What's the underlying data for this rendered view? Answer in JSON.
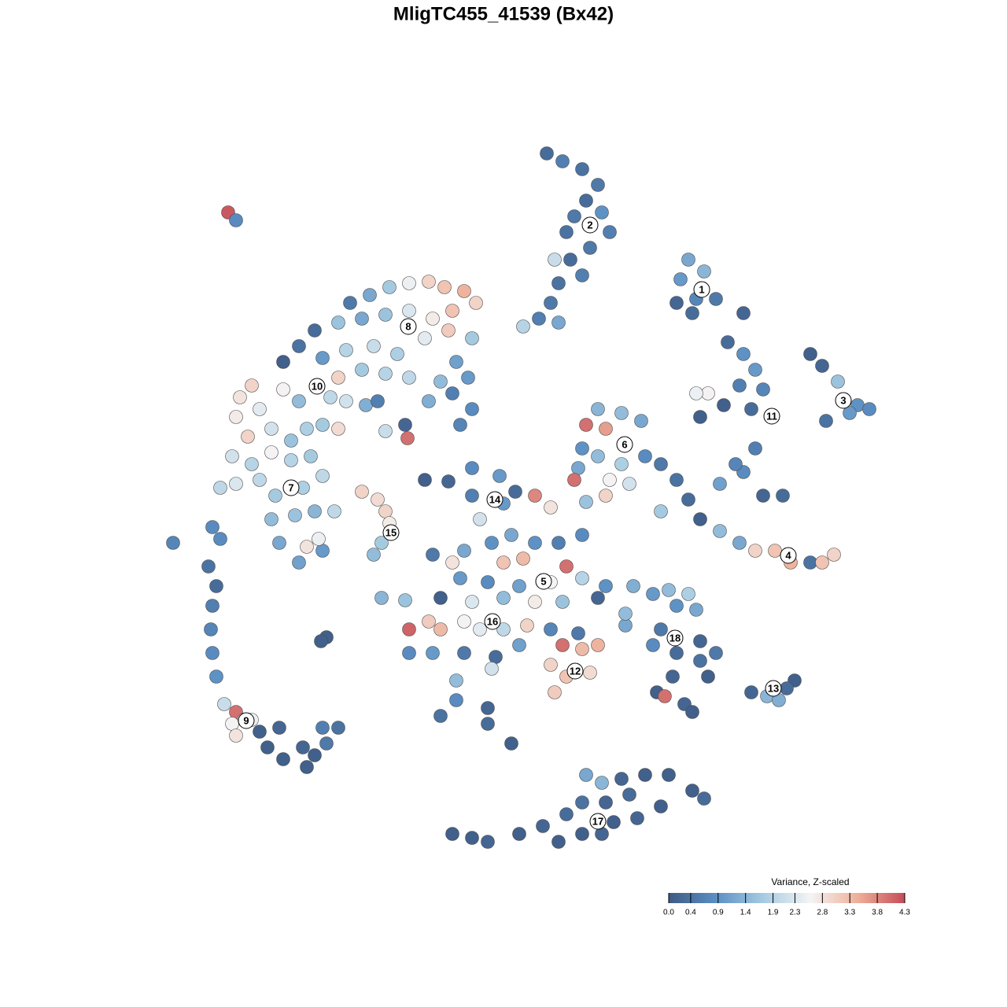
{
  "chart_data": {
    "type": "scatter",
    "title": "MligTC455_41539 (Bx42)",
    "xlim": [
      0,
      1280
    ],
    "ylim": [
      1280,
      0
    ],
    "x": [
      695,
      715,
      740,
      760,
      745,
      730,
      765,
      775,
      720,
      750,
      725,
      740,
      710,
      700,
      685,
      710,
      665,
      705,
      290,
      300,
      875,
      865,
      895,
      885,
      910,
      860,
      880,
      945,
      925,
      945,
      960,
      940,
      970,
      920,
      900,
      885,
      890,
      955,
      960,
      945,
      915,
      970,
      995,
      935,
      1030,
      1045,
      1065,
      1090,
      1105,
      1050,
      1080,
      445,
      470,
      495,
      520,
      545,
      565,
      590,
      605,
      575,
      550,
      520,
      490,
      460,
      430,
      400,
      380,
      360,
      410,
      440,
      475,
      505,
      540,
      570,
      600,
      580,
      560,
      595,
      600,
      575,
      585,
      545,
      520,
      490,
      460,
      430,
      420,
      440,
      465,
      480,
      320,
      305,
      330,
      360,
      380,
      300,
      315,
      345,
      370,
      390,
      410,
      430,
      295,
      320,
      345,
      370,
      395,
      280,
      300,
      330,
      350,
      385,
      410,
      345,
      375,
      400,
      425,
      355,
      390,
      410,
      380,
      405,
      490,
      515,
      518,
      460,
      480,
      490,
      495,
      485,
      475,
      760,
      790,
      815,
      745,
      770,
      740,
      760,
      790,
      820,
      840,
      735,
      730,
      775,
      800,
      770,
      745,
      860,
      875,
      890,
      915,
      940,
      960,
      985,
      1005,
      1030,
      1045,
      1060,
      840,
      540,
      570,
      600,
      635,
      655,
      680,
      700,
      610,
      640,
      600,
      550,
      590,
      625,
      650,
      680,
      710,
      740,
      575,
      640,
      665,
      720,
      700,
      660,
      620,
      585,
      740,
      770,
      560,
      600,
      640,
      680,
      715,
      760,
      545,
      520,
      560,
      590,
      610,
      640,
      670,
      700,
      735,
      520,
      550,
      590,
      630,
      660,
      715,
      740,
      760,
      700,
      720,
      750,
      705,
      580,
      580,
      560,
      620,
      620,
      650,
      625,
      485,
      515,
      795,
      795,
      805,
      830,
      850,
      875,
      860,
      885,
      840,
      830,
      860,
      890,
      910,
      900,
      855,
      835,
      845,
      870,
      880,
      890,
      955,
      975,
      990,
      1010,
      1000,
      220,
      270,
      280,
      265,
      275,
      270,
      268,
      270,
      275,
      285,
      300,
      310,
      295,
      320,
      300,
      330,
      355,
      340,
      360,
      385,
      400,
      415,
      430,
      390,
      410,
      415,
      408,
      575,
      600,
      620,
      660,
      690,
      710,
      720,
      740,
      745,
      765,
      790,
      820,
      850,
      880,
      895,
      840,
      810,
      780,
      765,
      740,
      800,
      770
    ],
    "y": [
      195,
      205,
      215,
      235,
      255,
      275,
      270,
      295,
      295,
      315,
      330,
      350,
      360,
      385,
      405,
      410,
      415,
      330,
      270,
      280,
      330,
      355,
      345,
      380,
      380,
      385,
      398,
      398,
      435,
      450,
      470,
      490,
      495,
      515,
      500,
      500,
      530,
      520,
      570,
      600,
      615,
      630,
      630,
      590,
      450,
      465,
      485,
      515,
      520,
      535,
      525,
      385,
      375,
      365,
      360,
      358,
      365,
      370,
      385,
      395,
      405,
      395,
      400,
      405,
      410,
      420,
      440,
      460,
      455,
      445,
      440,
      450,
      430,
      420,
      430,
      460,
      485,
      480,
      520,
      500,
      540,
      510,
      480,
      475,
      470,
      480,
      505,
      510,
      515,
      510,
      490,
      505,
      520,
      495,
      510,
      530,
      555,
      545,
      560,
      545,
      540,
      545,
      580,
      590,
      575,
      585,
      580,
      620,
      615,
      610,
      630,
      620,
      605,
      660,
      655,
      650,
      650,
      690,
      695,
      700,
      715,
      685,
      548,
      540,
      557,
      625,
      635,
      650,
      665,
      690,
      705,
      520,
      525,
      535,
      540,
      545,
      570,
      580,
      590,
      580,
      590,
      595,
      610,
      610,
      615,
      630,
      638,
      610,
      635,
      660,
      675,
      690,
      700,
      700,
      715,
      715,
      715,
      705,
      650,
      610,
      612,
      595,
      605,
      625,
      630,
      645,
      660,
      640,
      630,
      705,
      700,
      690,
      680,
      690,
      690,
      680,
      715,
      715,
      710,
      720,
      740,
      745,
      740,
      735,
      735,
      745,
      760,
      765,
      760,
      765,
      765,
      760,
      790,
      800,
      800,
      790,
      800,
      800,
      795,
      800,
      805,
      830,
      830,
      830,
      835,
      820,
      820,
      825,
      820,
      845,
      860,
      855,
      880,
      865,
      890,
      910,
      900,
      920,
      945,
      850,
      760,
      763,
      795,
      780,
      745,
      755,
      750,
      755,
      770,
      775,
      800,
      820,
      830,
      815,
      830,
      860,
      860,
      880,
      885,
      895,
      905,
      840,
      880,
      885,
      890,
      865,
      875,
      690,
      670,
      685,
      720,
      745,
      770,
      800,
      830,
      860,
      895,
      905,
      915,
      920,
      915,
      935,
      930,
      925,
      950,
      965,
      950,
      960,
      945,
      925,
      975,
      925,
      810,
      815,
      1060,
      1065,
      1070,
      1060,
      1050,
      1070,
      1035,
      1020,
      985,
      995,
      990,
      985,
      985,
      1005,
      1015,
      1025,
      1040,
      1045,
      1060,
      1060,
      1010,
      1020
    ],
    "values": [
      0.3,
      0.6,
      0.4,
      0.5,
      0.3,
      0.5,
      0.9,
      0.6,
      0.4,
      0.5,
      0.3,
      0.6,
      0.4,
      0.5,
      0.6,
      1.2,
      1.9,
      2.1,
      4.2,
      0.8,
      1.2,
      1.0,
      1.4,
      0.7,
      0.5,
      0.2,
      0.3,
      0.2,
      0.3,
      0.9,
      1.0,
      0.6,
      0.7,
      0.1,
      2.6,
      2.5,
      0.1,
      0.3,
      0.6,
      0.8,
      1.1,
      0.2,
      0.3,
      0.7,
      0.1,
      0.2,
      1.6,
      0.9,
      0.8,
      0.4,
      1.0,
      0.5,
      1.2,
      1.7,
      2.5,
      3.0,
      3.2,
      3.4,
      3.0,
      3.2,
      2.7,
      2.3,
      1.6,
      1.2,
      1.6,
      0.3,
      0.4,
      0.1,
      1.0,
      1.9,
      2.1,
      1.8,
      2.4,
      3.1,
      1.7,
      1.1,
      1.5,
      1.0,
      0.8,
      0.6,
      0.7,
      1.3,
      2.0,
      1.9,
      1.7,
      3.0,
      2.0,
      2.2,
      1.3,
      0.6,
      3.0,
      2.8,
      2.4,
      2.6,
      1.5,
      2.7,
      3.0,
      2.2,
      1.6,
      1.8,
      1.7,
      2.9,
      2.2,
      1.9,
      2.6,
      1.9,
      1.7,
      2.0,
      2.3,
      2.0,
      1.7,
      1.8,
      2.0,
      1.5,
      1.6,
      1.4,
      2.0,
      1.2,
      2.8,
      1.0,
      1.1,
      2.5,
      2.1,
      0.2,
      4.0,
      3.0,
      2.9,
      3.0,
      2.7,
      1.7,
      1.5,
      1.4,
      1.5,
      1.2,
      4.0,
      3.6,
      0.9,
      1.5,
      1.8,
      0.8,
      0.5,
      1.2,
      4.0,
      2.6,
      2.2,
      3.0,
      1.6,
      0.4,
      0.3,
      0.1,
      1.5,
      1.2,
      3.0,
      3.2,
      3.4,
      0.4,
      3.2,
      3.0,
      1.7,
      0.1,
      0.2,
      0.8,
      1.0,
      0.3,
      3.8,
      2.8,
      2.2,
      1.0,
      0.6,
      0.5,
      1.2,
      0.9,
      1.2,
      0.9,
      0.6,
      0.8,
      2.8,
      3.2,
      3.3,
      4.0,
      2.6,
      1.1,
      0.8,
      1.0,
      1.9,
      0.9,
      0.1,
      2.3,
      1.5,
      2.7,
      1.6,
      0.2,
      3.1,
      4.1,
      3.3,
      2.6,
      2.4,
      2.0,
      3.0,
      0.7,
      0.5,
      0.8,
      1.0,
      0.5,
      0.3,
      1.1,
      4.0,
      3.3,
      3.4,
      3.0,
      3.2,
      2.9,
      3.1,
      1.5,
      0.8,
      0.4,
      0.2,
      0.3,
      0.1,
      2.2,
      1.4,
      1.6,
      1.2,
      1.5,
      1.3,
      1.0,
      1.5,
      1.8,
      0.9,
      1.2,
      0.5,
      0.8,
      0.3,
      0.2,
      0.5,
      0.1,
      0.2,
      0.1,
      4.0,
      0.2,
      0.1,
      0.4,
      0.2,
      1.4,
      1.3,
      0.1,
      0.3,
      0.7,
      0.8,
      0.8,
      0.4,
      0.3,
      0.6,
      0.7,
      0.8,
      0.9,
      2.1,
      4.0,
      2.8,
      2.6,
      2.5,
      2.8,
      0.1,
      0.2,
      0.1,
      0.1,
      0.2,
      0.1,
      0.5,
      0.4,
      0.1,
      0.6,
      0.1,
      0.1,
      0.1,
      0.1,
      0.2,
      0.1,
      0.2,
      0.1,
      0.3,
      0.4,
      1.2,
      1.4,
      0.2,
      0.1,
      0.1,
      0.1,
      0.3,
      0.1,
      0.2,
      0.1,
      0.2,
      0.1,
      0.3,
      0.2
    ],
    "cluster_labels": [
      {
        "text": "1",
        "x": 892,
        "y": 368
      },
      {
        "text": "2",
        "x": 750,
        "y": 286
      },
      {
        "text": "3",
        "x": 1072,
        "y": 509
      },
      {
        "text": "4",
        "x": 1002,
        "y": 706
      },
      {
        "text": "5",
        "x": 691,
        "y": 739
      },
      {
        "text": "6",
        "x": 794,
        "y": 565
      },
      {
        "text": "7",
        "x": 370,
        "y": 620
      },
      {
        "text": "8",
        "x": 519,
        "y": 415
      },
      {
        "text": "9",
        "x": 313,
        "y": 916
      },
      {
        "text": "10",
        "x": 403,
        "y": 491
      },
      {
        "text": "11",
        "x": 981,
        "y": 529
      },
      {
        "text": "12",
        "x": 731,
        "y": 853
      },
      {
        "text": "13",
        "x": 983,
        "y": 875
      },
      {
        "text": "14",
        "x": 629,
        "y": 635
      },
      {
        "text": "15",
        "x": 497,
        "y": 677
      },
      {
        "text": "16",
        "x": 626,
        "y": 790
      },
      {
        "text": "17",
        "x": 760,
        "y": 1044
      },
      {
        "text": "18",
        "x": 858,
        "y": 811
      }
    ],
    "colorbar": {
      "title": "Variance, Z-scaled",
      "clim": [
        0,
        4.3
      ],
      "ticks": [
        {
          "value": 0,
          "label": "0.0"
        },
        0.4,
        0.9,
        1.4,
        1.9,
        2.3,
        2.8,
        3.3,
        3.8,
        4.3
      ],
      "colors": [
        "#3e5a84",
        "#5b8fc4",
        "#a6cbe1",
        "#f4f4f4",
        "#eeb09a",
        "#c44d59"
      ]
    }
  }
}
